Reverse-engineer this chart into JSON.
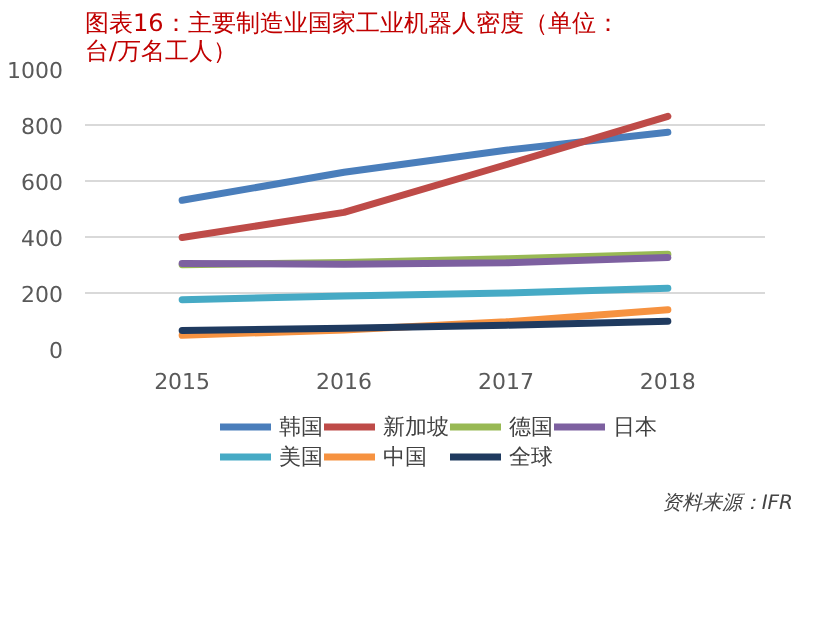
{
  "chart_data": {
    "type": "line",
    "title": "图表16：主要制造业国家工业机器人密度（单位：台/万名工人）",
    "categories": [
      "2015",
      "2016",
      "2017",
      "2018"
    ],
    "ylim": [
      0,
      1000
    ],
    "yticks": [
      0,
      200,
      400,
      600,
      800,
      1000
    ],
    "grid": "y",
    "legend": "bottom",
    "annotations": [
      "资料来源：IFR"
    ],
    "series": [
      {
        "name": "韩国",
        "color": "#4a7ebb",
        "values": [
          531,
          631,
          710,
          774
        ]
      },
      {
        "name": "新加坡",
        "color": "#be4b48",
        "values": [
          398,
          488,
          658,
          831
        ]
      },
      {
        "name": "德国",
        "color": "#98b954",
        "values": [
          301,
          309,
          322,
          338
        ]
      },
      {
        "name": "日本",
        "color": "#7d60a0",
        "values": [
          305,
          303,
          308,
          327
        ]
      },
      {
        "name": "美国",
        "color": "#46aac5",
        "values": [
          176,
          189,
          200,
          217
        ]
      },
      {
        "name": "中国",
        "color": "#f69240",
        "values": [
          49,
          68,
          97,
          140
        ]
      },
      {
        "name": "全球",
        "color": "#1f3a5f",
        "values": [
          66,
          74,
          85,
          99
        ]
      }
    ]
  }
}
